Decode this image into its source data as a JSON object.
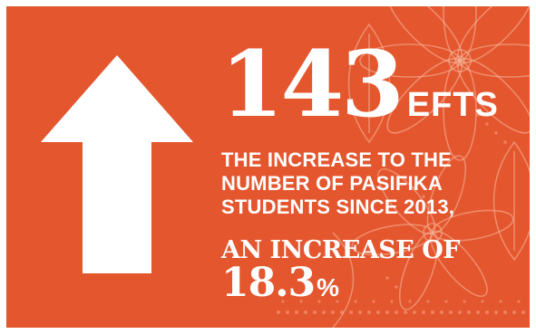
{
  "stat": {
    "number": "143",
    "unit": "EFTS"
  },
  "description": {
    "line1": "THE INCREASE TO THE",
    "line2": "NUMBER OF PASIFIKA",
    "line3": "STUDENTS SINCE 2013,"
  },
  "emphasis": {
    "lead": "AN INCREASE OF",
    "value": "18.3",
    "unit": "%"
  },
  "colors": {
    "background": "#e4562d",
    "text": "#ffffff",
    "pattern": "#f6b89e"
  },
  "icons": {
    "arrow": "up-arrow-icon",
    "pattern": "floral-tapa-pattern"
  }
}
